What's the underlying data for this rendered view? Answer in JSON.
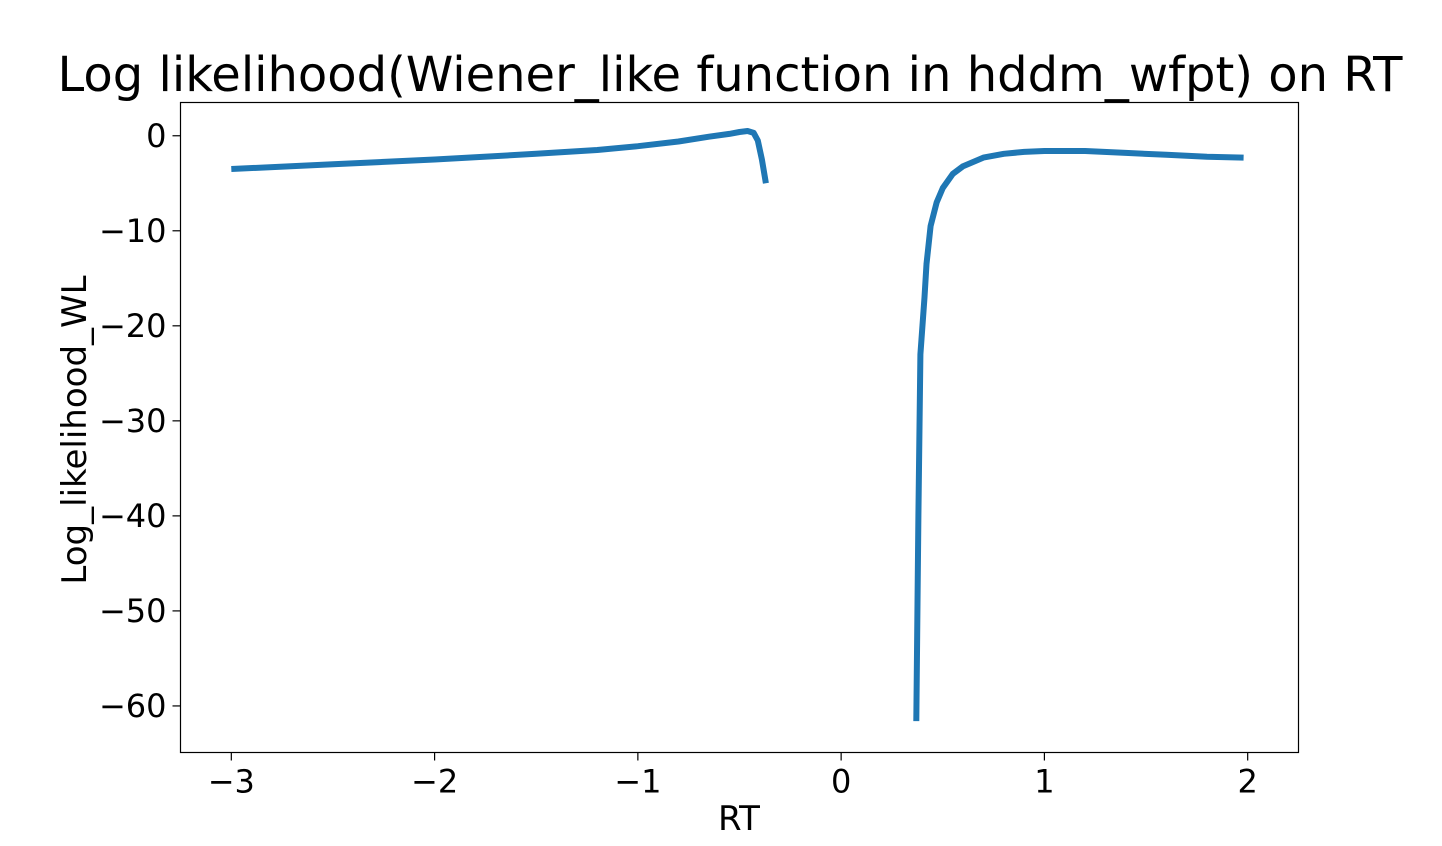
{
  "chart_data": {
    "type": "line",
    "title": "Log likelihood(Wiener_like function in hddm_wfpt) on RT",
    "xlabel": "RT",
    "ylabel": "Log_likelihood_WL",
    "xlim": [
      -3.25,
      2.25
    ],
    "ylim": [
      -64.9,
      3.5
    ],
    "xticks": [
      -3,
      -2,
      -1,
      0,
      1,
      2
    ],
    "xtick_labels": [
      "−3",
      "−2",
      "−1",
      "0",
      "1",
      "2"
    ],
    "yticks": [
      0,
      -10,
      -20,
      -30,
      -40,
      -50,
      -60
    ],
    "ytick_labels": [
      "0",
      "−10",
      "−20",
      "−30",
      "−40",
      "−50",
      "−60"
    ],
    "grid": false,
    "legend": "none",
    "line_color": "#1f77b4",
    "series": [
      {
        "segments": [
          [
            [
              -3.0,
              -3.5
            ],
            [
              -2.5,
              -3.0
            ],
            [
              -2.0,
              -2.5
            ],
            [
              -1.5,
              -1.9
            ],
            [
              -1.2,
              -1.5
            ],
            [
              -1.0,
              -1.1
            ],
            [
              -0.8,
              -0.6
            ],
            [
              -0.65,
              -0.1
            ],
            [
              -0.55,
              0.2
            ],
            [
              -0.5,
              0.4
            ],
            [
              -0.46,
              0.5
            ],
            [
              -0.43,
              0.3
            ],
            [
              -0.41,
              -0.5
            ],
            [
              -0.39,
              -2.5
            ],
            [
              -0.37,
              -5.0
            ]
          ],
          [
            [
              0.37,
              -61.6
            ],
            [
              0.38,
              -40.0
            ],
            [
              0.39,
              -23.0
            ],
            [
              0.41,
              -17.0
            ],
            [
              0.42,
              -13.5
            ],
            [
              0.44,
              -9.5
            ],
            [
              0.47,
              -7.0
            ],
            [
              0.5,
              -5.5
            ],
            [
              0.55,
              -4.0
            ],
            [
              0.6,
              -3.2
            ],
            [
              0.7,
              -2.3
            ],
            [
              0.8,
              -1.9
            ],
            [
              0.9,
              -1.7
            ],
            [
              1.0,
              -1.6
            ],
            [
              1.2,
              -1.6
            ],
            [
              1.4,
              -1.8
            ],
            [
              1.6,
              -2.0
            ],
            [
              1.8,
              -2.2
            ],
            [
              1.98,
              -2.3
            ]
          ]
        ]
      }
    ]
  }
}
